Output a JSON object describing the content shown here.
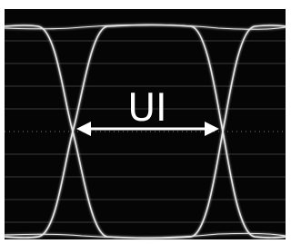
{
  "label": "UI"
}
